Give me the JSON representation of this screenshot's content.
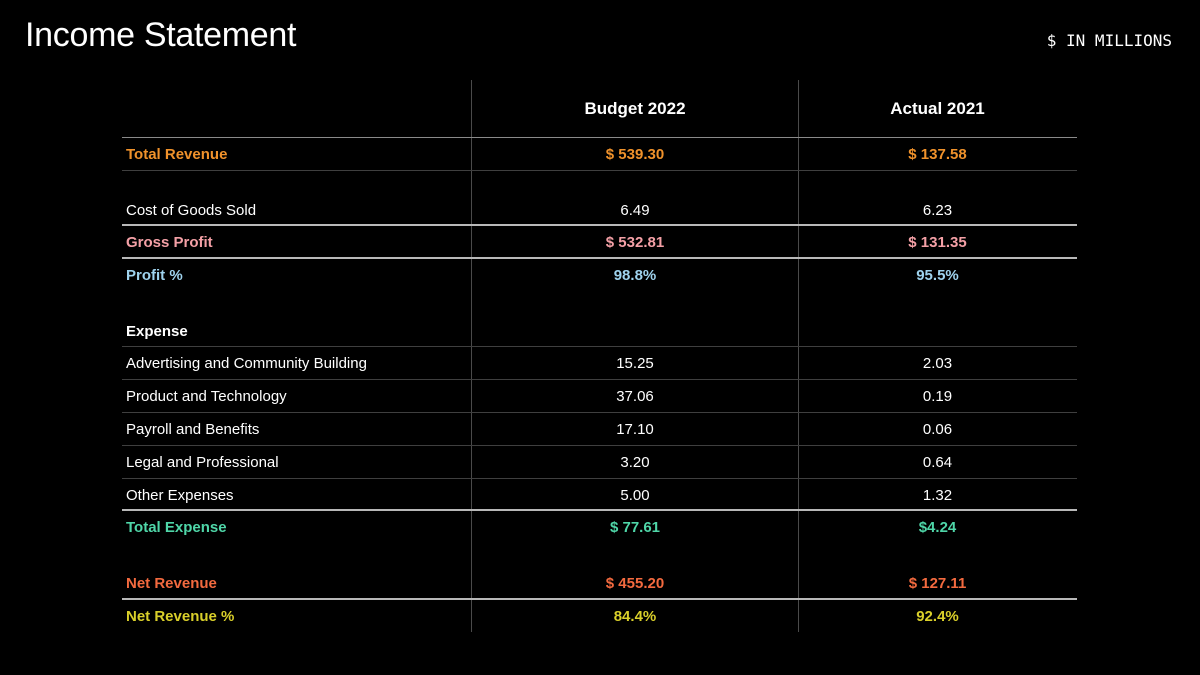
{
  "title": "Income Statement",
  "units": "$ IN MILLIONS",
  "columns": [
    "Budget 2022",
    "Actual 2021"
  ],
  "colors": {
    "revenue": "#f0922b",
    "gross_profit": "#f4a0a6",
    "profit_pct": "#9fd3ee",
    "total_expense": "#4fd6a8",
    "net_revenue": "#f36a3f",
    "net_revenue_pct": "#d9cf2a",
    "text": "#ffffff"
  },
  "rows": [
    {
      "label": "Total Revenue",
      "budget": "$ 539.30",
      "actual": "$ 137.58"
    },
    {
      "label": "Cost of Goods Sold",
      "budget": "6.49",
      "actual": "6.23"
    },
    {
      "label": "Gross Profit",
      "budget": "$ 532.81",
      "actual": "$ 131.35"
    },
    {
      "label": "Profit %",
      "budget": "98.8%",
      "actual": "95.5%"
    },
    {
      "label": "Expense",
      "budget": "",
      "actual": ""
    },
    {
      "label": "Advertising and Community Building",
      "budget": "15.25",
      "actual": "2.03"
    },
    {
      "label": "Product and Technology",
      "budget": "37.06",
      "actual": "0.19"
    },
    {
      "label": "Payroll and Benefits",
      "budget": "17.10",
      "actual": "0.06"
    },
    {
      "label": "Legal and Professional",
      "budget": "3.20",
      "actual": "0.64"
    },
    {
      "label": "Other Expenses",
      "budget": "5.00",
      "actual": "1.32"
    },
    {
      "label": "Total Expense",
      "budget": "$ 77.61",
      "actual": "$4.24"
    },
    {
      "label": "Net Revenue",
      "budget": "$ 455.20",
      "actual": "$ 127.11"
    },
    {
      "label": "Net Revenue %",
      "budget": "84.4%",
      "actual": "92.4%"
    }
  ]
}
